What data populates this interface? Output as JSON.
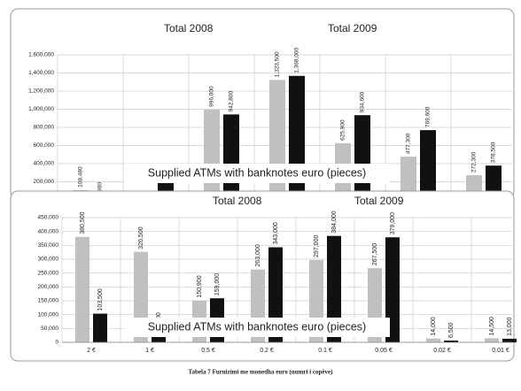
{
  "chart_data": [
    {
      "type": "bar",
      "categories": [
        null,
        null,
        null,
        null,
        null,
        null,
        null
      ],
      "series": [
        {
          "name": "Total 2008",
          "color": "#c0c0c0",
          "values": [
            108480,
            null,
            996000,
            1323500,
            625900,
            477300,
            272300
          ],
          "value_labels": [
            "108,480",
            null,
            "996,000",
            "1,323,500",
            "625,900",
            "477,300",
            "272,300"
          ]
        },
        {
          "name": "Total 2009",
          "color": "#111111",
          "values": [
            6900,
            250000,
            942800,
            1368000,
            934600,
            769600,
            378500
          ],
          "value_labels": [
            "6,900",
            null,
            "942,800",
            "1,368,000",
            "934,600",
            "769,600",
            "378,500"
          ]
        }
      ],
      "ylim": [
        0,
        1600000
      ],
      "yticks": [
        {
          "value": 200000,
          "label": "200,000"
        },
        {
          "value": 400000,
          "label": "400,000"
        },
        {
          "value": 600000,
          "label": "600,000"
        },
        {
          "value": 800000,
          "label": "800,000"
        },
        {
          "value": 1000000,
          "label": "1,000,000"
        },
        {
          "value": 1200000,
          "label": "1,200,000"
        },
        {
          "value": 1400000,
          "label": "1,400,000"
        },
        {
          "value": 1600000,
          "label": "1,600,000"
        }
      ],
      "grid": true,
      "annotation": "Supplied ATMs with banknotes euro (pieces)"
    },
    {
      "type": "bar",
      "categories": [
        "2 €",
        "1 €",
        "0.5 €",
        "0.2 €",
        "0.1 €",
        "0.05 €",
        "0.02 €",
        "0.01 €"
      ],
      "series": [
        {
          "name": "Total 2008",
          "color": "#c0c0c0",
          "values": [
            380500,
            326500,
            150900,
            263000,
            297000,
            267500,
            14000,
            14500
          ],
          "value_labels": [
            "380,500",
            "326,500",
            "150,900",
            "263,000",
            "297,000",
            "267,500",
            "14,000",
            "14,500"
          ]
        },
        {
          "name": "Total 2009",
          "color": "#111111",
          "values": [
            103500,
            30000,
            159000,
            343000,
            384000,
            379000,
            6500,
            13000
          ],
          "value_labels": [
            "103,500",
            "30,000",
            "159,000",
            "343,000",
            "384,000",
            "379,000",
            "6,500",
            "13,000"
          ]
        }
      ],
      "ylim": [
        0,
        450000
      ],
      "yticks": [
        0,
        {
          "value": 50000,
          "label": "50,000"
        },
        {
          "value": 100000,
          "label": "100,000"
        },
        {
          "value": 150000,
          "label": "150,000"
        },
        {
          "value": 200000,
          "label": "200,000"
        },
        {
          "value": 250000,
          "label": "250,000"
        },
        {
          "value": 300000,
          "label": "300,000"
        },
        {
          "value": 350000,
          "label": "350,000"
        },
        {
          "value": 400000,
          "label": "400,000"
        },
        {
          "value": 450000,
          "label": "450,000"
        }
      ],
      "grid": true,
      "annotation": "Supplied ATMs with banknotes euro (pieces)"
    }
  ],
  "caption": "Tabela 7 Furnizimi me monedha euro (numri i copëve)"
}
